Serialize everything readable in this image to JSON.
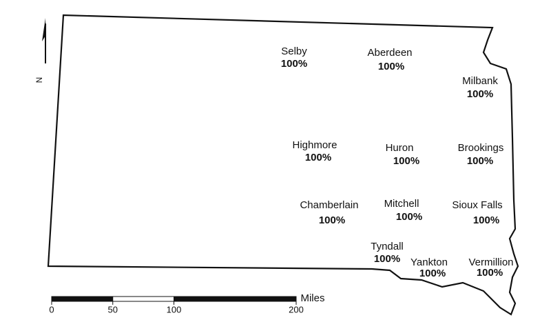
{
  "north_label": "N",
  "cities": [
    {
      "name": "Selby",
      "label": "100%"
    },
    {
      "name": "Aberdeen",
      "label": "100%"
    },
    {
      "name": "Milbank",
      "label": "100%"
    },
    {
      "name": "Highmore",
      "label": "100%"
    },
    {
      "name": "Huron",
      "label": "100%"
    },
    {
      "name": "Brookings",
      "label": "100%"
    },
    {
      "name": "Chamberlain",
      "label": "100%"
    },
    {
      "name": "Mitchell",
      "label": "100%"
    },
    {
      "name": "Sioux Falls",
      "label": "100%"
    },
    {
      "name": "Tyndall",
      "label": "100%"
    },
    {
      "name": "Yankton",
      "label": "100%"
    },
    {
      "name": "Vermillion",
      "label": "100%"
    }
  ],
  "scale_bar": {
    "unit": "Miles",
    "ticks": [
      0,
      50,
      100,
      200
    ]
  }
}
